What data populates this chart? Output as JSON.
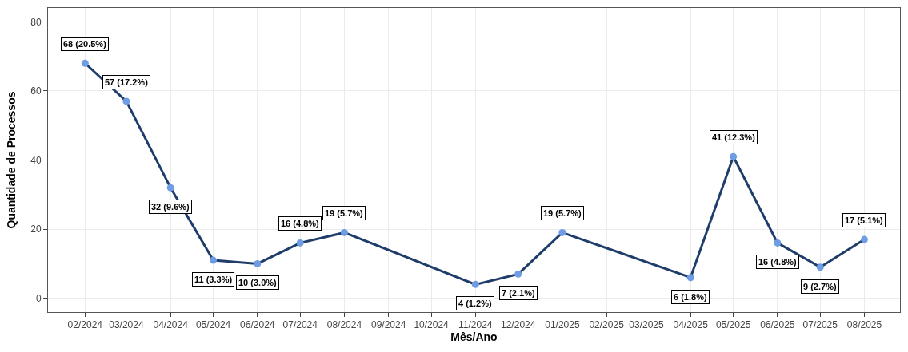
{
  "chart_data": {
    "type": "line",
    "xlabel": "Mês/Ano",
    "ylabel": "Quantidade de Processos",
    "x": [
      "2024-02",
      "2024-03",
      "2024-04",
      "2024-05",
      "2024-06",
      "2024-07",
      "2024-08",
      "2024-11",
      "2024-12",
      "2025-01",
      "2025-04",
      "2025-05",
      "2025-06",
      "2025-07",
      "2025-08"
    ],
    "series": [
      {
        "color": "#1f3d6b",
        "colors": [
          "#6f9de3",
          "#6f9de3",
          "#6f9de3",
          "#6f9de3",
          "#6f9de3",
          "#6f9de3",
          "#6f9de3",
          "#6f9de3",
          "#6f9de3",
          "#6f9de3",
          "#6f9de3",
          "#6f9de3",
          "#6f9de3",
          "#6f9de3",
          "#6f9de3"
        ],
        "values": [
          68,
          57,
          32,
          11,
          10,
          16,
          19,
          4,
          7,
          19,
          6,
          41,
          16,
          9,
          17
        ],
        "value_labels": [
          "68 (20.5%)",
          "57 (17.2%)",
          "32 (9.6%)",
          "11 (3.3%)",
          "10 (3.0%)",
          "16 (4.8%)",
          "19 (5.7%)",
          "4 (1.2%)",
          "7 (2.1%)",
          "19 (5.7%)",
          "6 (1.8%)",
          "41 (12.3%)",
          "16 (4.8%)",
          "9 (2.7%)",
          "17 (5.1%)"
        ]
      }
    ],
    "xlim": [
      "2024-01-06",
      "2025-08-26"
    ],
    "xticks": [
      {
        "value": "2024-02",
        "label": "02/2024"
      },
      {
        "value": "2024-03",
        "label": "03/2024"
      },
      {
        "value": "2024-04",
        "label": "04/2024"
      },
      {
        "value": "2024-05",
        "label": "05/2024"
      },
      {
        "value": "2024-06",
        "label": "06/2024"
      },
      {
        "value": "2024-07",
        "label": "07/2024"
      },
      {
        "value": "2024-08",
        "label": "08/2024"
      },
      {
        "value": "2024-09",
        "label": "09/2024"
      },
      {
        "value": "2024-10",
        "label": "10/2024"
      },
      {
        "value": "2024-11",
        "label": "11/2024"
      },
      {
        "value": "2024-12",
        "label": "12/2024"
      },
      {
        "value": "2025-01",
        "label": "01/2025"
      },
      {
        "value": "2025-02",
        "label": "02/2025"
      },
      {
        "value": "2025-03",
        "label": "03/2025"
      },
      {
        "value": "2025-04",
        "label": "04/2025"
      },
      {
        "value": "2025-05",
        "label": "05/2025"
      },
      {
        "value": "2025-06",
        "label": "06/2025"
      },
      {
        "value": "2025-07",
        "label": "07/2025"
      },
      {
        "value": "2025-08",
        "label": "08/2025"
      }
    ],
    "ylim": [
      -4,
      84
    ],
    "yticks": [
      0,
      20,
      40,
      60,
      80
    ],
    "grid": true,
    "marker": "circle",
    "line_style": "solid"
  }
}
